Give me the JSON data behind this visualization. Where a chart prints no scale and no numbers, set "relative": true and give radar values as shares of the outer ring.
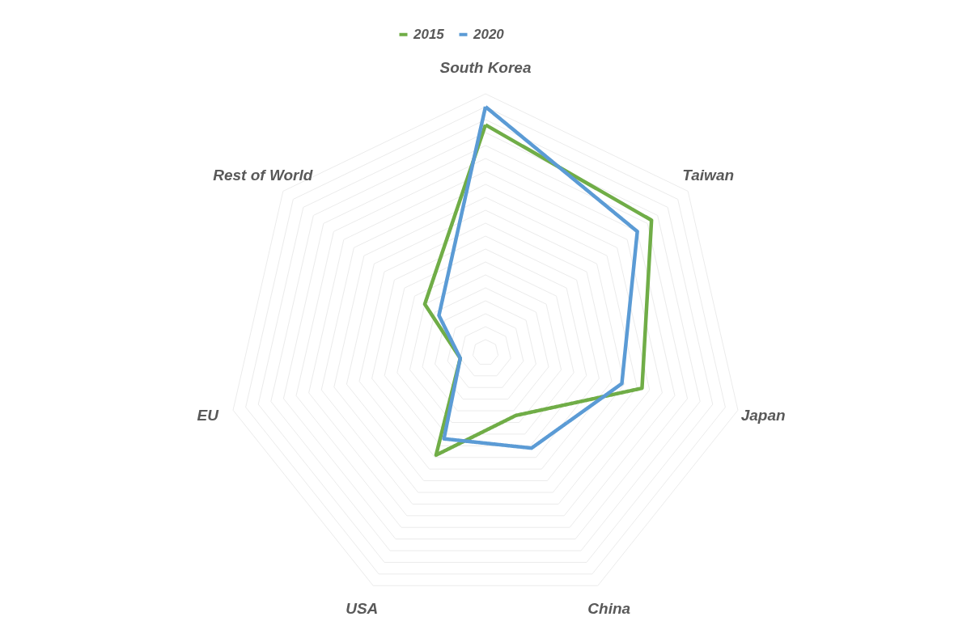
{
  "chart_data": {
    "type": "radar",
    "relative": true,
    "categories": [
      "South Korea",
      "Taiwan",
      "Japan",
      "China",
      "USA",
      "EU",
      "Rest of World"
    ],
    "series": [
      {
        "name": "2015",
        "color": "#70ad47",
        "values": [
          0.88,
          0.82,
          0.62,
          0.27,
          0.44,
          0.1,
          0.3
        ]
      },
      {
        "name": "2020",
        "color": "#5b9bd5",
        "values": [
          0.95,
          0.75,
          0.54,
          0.41,
          0.37,
          0.1,
          0.23
        ]
      }
    ],
    "grid": true,
    "legend": "top",
    "marker": "none",
    "line_style": "solid"
  }
}
